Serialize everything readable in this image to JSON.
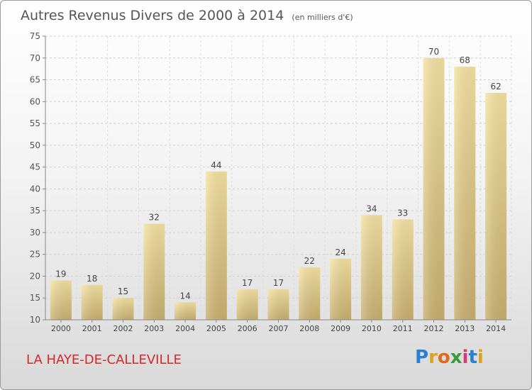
{
  "header": {
    "title": "Autres Revenus Divers de 2000 à 2014",
    "unit": "(en milliers d'€)"
  },
  "footer": {
    "commune": "LA HAYE-DE-CALLEVILLE",
    "logo_text": "Proxiti",
    "logo_letters": [
      {
        "ch": "P",
        "color": "#2a7fd4"
      },
      {
        "ch": "r",
        "color": "#e0a020"
      },
      {
        "ch": "o",
        "color": "#e06a1a"
      },
      {
        "ch": "x",
        "color": "#3a9a3a"
      },
      {
        "ch": "i",
        "color": "#d23a7a"
      },
      {
        "ch": "t",
        "color": "#2a7fd4"
      },
      {
        "ch": "i",
        "color": "#e0a020"
      }
    ]
  },
  "chart_data": {
    "type": "bar",
    "title": "Autres Revenus Divers de 2000 à 2014",
    "subtitle": "(en milliers d'€)",
    "xlabel": "",
    "ylabel": "",
    "categories": [
      "2000",
      "2001",
      "2002",
      "2003",
      "2004",
      "2005",
      "2006",
      "2007",
      "2008",
      "2009",
      "2010",
      "2011",
      "2012",
      "2013",
      "2014"
    ],
    "values": [
      19,
      18,
      15,
      32,
      14,
      44,
      17,
      17,
      22,
      24,
      34,
      33,
      70,
      68,
      62
    ],
    "ylim": [
      10,
      75
    ],
    "yticks": [
      10,
      15,
      20,
      25,
      30,
      35,
      40,
      45,
      50,
      55,
      60,
      65,
      70,
      75
    ],
    "grid": true,
    "bar_color": "#e8d190",
    "data_labels": true
  }
}
